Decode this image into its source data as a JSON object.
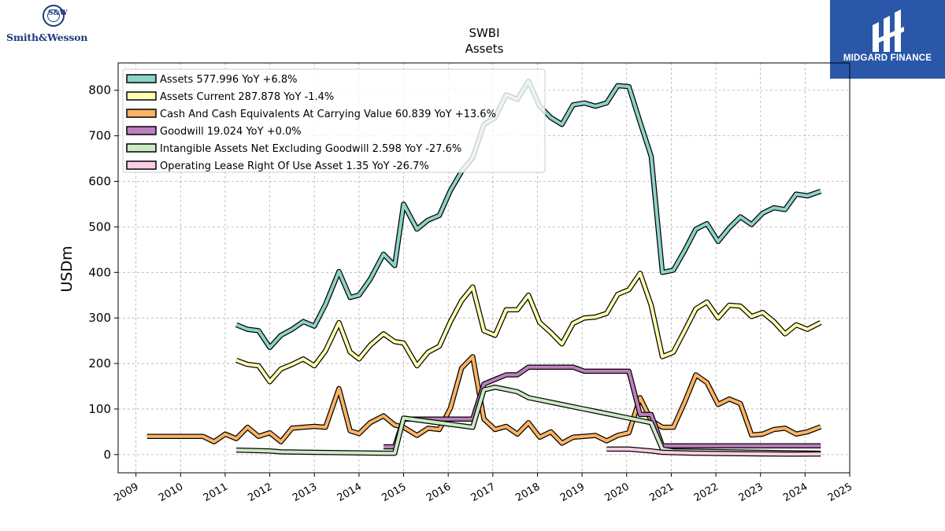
{
  "header": {
    "left_logo_text": "Smith&Wesson",
    "left_logo_mark": "S&W",
    "right_logo_text": "MIDGARD FINANCE"
  },
  "chart_data": {
    "type": "line",
    "title": "SWBI",
    "subtitle": "Assets",
    "xlabel": "",
    "ylabel": "USDm",
    "xlim": [
      2008.6,
      2025.0
    ],
    "ylim": [
      -40,
      860
    ],
    "x_ticks": [
      "2009",
      "2010",
      "2011",
      "2012",
      "2013",
      "2014",
      "2015",
      "2016",
      "2017",
      "2018",
      "2019",
      "2020",
      "2021",
      "2022",
      "2023",
      "2024",
      "2025"
    ],
    "y_ticks": [
      0,
      100,
      200,
      300,
      400,
      500,
      600,
      700,
      800
    ],
    "grid": true,
    "legend_position": "top-left",
    "series": [
      {
        "name": "Assets",
        "legend": "Assets  577.996 YoY +6.8%",
        "color": "#8dd3c7",
        "points": [
          [
            2011.25,
            285
          ],
          [
            2011.5,
            275
          ],
          [
            2011.75,
            272
          ],
          [
            2012.0,
            235
          ],
          [
            2012.25,
            262
          ],
          [
            2012.5,
            275
          ],
          [
            2012.75,
            292
          ],
          [
            2013.0,
            282
          ],
          [
            2013.25,
            330
          ],
          [
            2013.55,
            402
          ],
          [
            2013.8,
            345
          ],
          [
            2014.0,
            350
          ],
          [
            2014.25,
            385
          ],
          [
            2014.55,
            440
          ],
          [
            2014.8,
            415
          ],
          [
            2015.0,
            550
          ],
          [
            2015.3,
            495
          ],
          [
            2015.55,
            515
          ],
          [
            2015.8,
            525
          ],
          [
            2016.05,
            580
          ],
          [
            2016.3,
            622
          ],
          [
            2016.55,
            652
          ],
          [
            2016.8,
            725
          ],
          [
            2017.05,
            740
          ],
          [
            2017.3,
            790
          ],
          [
            2017.55,
            780
          ],
          [
            2017.8,
            820
          ],
          [
            2018.05,
            765
          ],
          [
            2018.3,
            740
          ],
          [
            2018.55,
            725
          ],
          [
            2018.8,
            768
          ],
          [
            2019.05,
            772
          ],
          [
            2019.3,
            765
          ],
          [
            2019.55,
            772
          ],
          [
            2019.8,
            810
          ],
          [
            2020.05,
            808
          ],
          [
            2020.3,
            730
          ],
          [
            2020.55,
            655
          ],
          [
            2020.8,
            400
          ],
          [
            2021.05,
            405
          ],
          [
            2021.3,
            448
          ],
          [
            2021.55,
            495
          ],
          [
            2021.8,
            507
          ],
          [
            2022.05,
            468
          ],
          [
            2022.3,
            498
          ],
          [
            2022.55,
            522
          ],
          [
            2022.8,
            505
          ],
          [
            2023.05,
            530
          ],
          [
            2023.3,
            542
          ],
          [
            2023.55,
            538
          ],
          [
            2023.8,
            572
          ],
          [
            2024.05,
            568
          ],
          [
            2024.35,
            578
          ]
        ]
      },
      {
        "name": "Assets Current",
        "legend": "Assets Current  287.878 YoY -1.4%",
        "color": "#ffffb3",
        "points": [
          [
            2011.25,
            207
          ],
          [
            2011.5,
            198
          ],
          [
            2011.75,
            195
          ],
          [
            2012.0,
            160
          ],
          [
            2012.25,
            188
          ],
          [
            2012.5,
            198
          ],
          [
            2012.75,
            210
          ],
          [
            2013.0,
            195
          ],
          [
            2013.25,
            228
          ],
          [
            2013.55,
            290
          ],
          [
            2013.8,
            225
          ],
          [
            2014.0,
            210
          ],
          [
            2014.25,
            240
          ],
          [
            2014.55,
            265
          ],
          [
            2014.8,
            248
          ],
          [
            2015.0,
            245
          ],
          [
            2015.3,
            195
          ],
          [
            2015.55,
            225
          ],
          [
            2015.8,
            238
          ],
          [
            2016.05,
            292
          ],
          [
            2016.3,
            338
          ],
          [
            2016.55,
            368
          ],
          [
            2016.8,
            272
          ],
          [
            2017.05,
            262
          ],
          [
            2017.3,
            318
          ],
          [
            2017.55,
            318
          ],
          [
            2017.8,
            350
          ],
          [
            2018.05,
            290
          ],
          [
            2018.3,
            268
          ],
          [
            2018.55,
            243
          ],
          [
            2018.8,
            288
          ],
          [
            2019.05,
            300
          ],
          [
            2019.3,
            302
          ],
          [
            2019.55,
            310
          ],
          [
            2019.8,
            352
          ],
          [
            2020.05,
            362
          ],
          [
            2020.3,
            398
          ],
          [
            2020.55,
            328
          ],
          [
            2020.8,
            215
          ],
          [
            2021.05,
            225
          ],
          [
            2021.3,
            272
          ],
          [
            2021.55,
            320
          ],
          [
            2021.8,
            335
          ],
          [
            2022.05,
            300
          ],
          [
            2022.3,
            328
          ],
          [
            2022.55,
            326
          ],
          [
            2022.8,
            303
          ],
          [
            2023.05,
            312
          ],
          [
            2023.3,
            292
          ],
          [
            2023.55,
            265
          ],
          [
            2023.8,
            285
          ],
          [
            2024.05,
            275
          ],
          [
            2024.35,
            290
          ]
        ]
      },
      {
        "name": "Cash And Cash Equivalents At Carrying Value",
        "legend": "Cash And Cash Equivalents At Carrying Value  60.839 YoY +13.6%",
        "color": "#fdb462",
        "points": [
          [
            2009.25,
            40
          ],
          [
            2009.5,
            40
          ],
          [
            2009.75,
            40
          ],
          [
            2010.0,
            40
          ],
          [
            2010.25,
            40
          ],
          [
            2010.5,
            40
          ],
          [
            2010.75,
            28
          ],
          [
            2011.0,
            45
          ],
          [
            2011.25,
            35
          ],
          [
            2011.5,
            60
          ],
          [
            2011.75,
            40
          ],
          [
            2012.0,
            48
          ],
          [
            2012.25,
            28
          ],
          [
            2012.5,
            58
          ],
          [
            2012.75,
            60
          ],
          [
            2013.0,
            62
          ],
          [
            2013.25,
            60
          ],
          [
            2013.55,
            145
          ],
          [
            2013.8,
            52
          ],
          [
            2014.0,
            46
          ],
          [
            2014.25,
            70
          ],
          [
            2014.55,
            85
          ],
          [
            2014.8,
            65
          ],
          [
            2015.0,
            60
          ],
          [
            2015.3,
            42
          ],
          [
            2015.55,
            58
          ],
          [
            2015.8,
            55
          ],
          [
            2016.05,
            102
          ],
          [
            2016.3,
            190
          ],
          [
            2016.55,
            215
          ],
          [
            2016.8,
            78
          ],
          [
            2017.05,
            55
          ],
          [
            2017.3,
            62
          ],
          [
            2017.55,
            45
          ],
          [
            2017.8,
            70
          ],
          [
            2018.05,
            38
          ],
          [
            2018.3,
            50
          ],
          [
            2018.55,
            25
          ],
          [
            2018.8,
            38
          ],
          [
            2019.05,
            40
          ],
          [
            2019.3,
            42
          ],
          [
            2019.55,
            30
          ],
          [
            2019.8,
            42
          ],
          [
            2020.05,
            48
          ],
          [
            2020.3,
            125
          ],
          [
            2020.55,
            75
          ],
          [
            2020.8,
            60
          ],
          [
            2021.05,
            60
          ],
          [
            2021.3,
            115
          ],
          [
            2021.55,
            175
          ],
          [
            2021.8,
            158
          ],
          [
            2022.05,
            110
          ],
          [
            2022.3,
            122
          ],
          [
            2022.55,
            112
          ],
          [
            2022.8,
            43
          ],
          [
            2023.05,
            45
          ],
          [
            2023.3,
            55
          ],
          [
            2023.55,
            58
          ],
          [
            2023.8,
            45
          ],
          [
            2024.05,
            50
          ],
          [
            2024.35,
            61
          ]
        ]
      },
      {
        "name": "Goodwill",
        "legend": "Goodwill  19.024 YoY +0.0%",
        "color": "#bc80bd",
        "points": [
          [
            2014.55,
            17
          ],
          [
            2014.8,
            17
          ],
          [
            2015.0,
            78
          ],
          [
            2016.55,
            78
          ],
          [
            2016.8,
            155
          ],
          [
            2017.05,
            165
          ],
          [
            2017.3,
            175
          ],
          [
            2017.55,
            175
          ],
          [
            2017.8,
            192
          ],
          [
            2018.05,
            192
          ],
          [
            2018.55,
            192
          ],
          [
            2018.8,
            192
          ],
          [
            2019.05,
            183
          ],
          [
            2019.55,
            183
          ],
          [
            2019.8,
            183
          ],
          [
            2020.05,
            183
          ],
          [
            2020.3,
            88
          ],
          [
            2020.55,
            88
          ],
          [
            2020.8,
            19
          ],
          [
            2024.35,
            19
          ]
        ]
      },
      {
        "name": "Intangible Assets Net Excluding Goodwill",
        "legend": "Intangible Assets Net Excluding Goodwill  2.598 YoY -27.6%",
        "color": "#ccebc5",
        "points": [
          [
            2011.25,
            10
          ],
          [
            2012.0,
            8
          ],
          [
            2012.25,
            6
          ],
          [
            2014.55,
            3
          ],
          [
            2014.8,
            3
          ],
          [
            2015.0,
            80
          ],
          [
            2016.55,
            60
          ],
          [
            2016.8,
            142
          ],
          [
            2017.05,
            148
          ],
          [
            2017.55,
            138
          ],
          [
            2017.8,
            125
          ],
          [
            2018.55,
            110
          ],
          [
            2019.05,
            100
          ],
          [
            2019.55,
            90
          ],
          [
            2020.05,
            80
          ],
          [
            2020.55,
            70
          ],
          [
            2020.8,
            12
          ],
          [
            2021.05,
            8
          ],
          [
            2024.35,
            3
          ]
        ]
      },
      {
        "name": "Operating Lease Right Of Use Asset",
        "legend": "Operating Lease Right Of Use Asset  1.35 YoY -26.7%",
        "color": "#fccde5",
        "points": [
          [
            2019.55,
            12
          ],
          [
            2020.05,
            12
          ],
          [
            2020.55,
            8
          ],
          [
            2020.8,
            5
          ],
          [
            2021.55,
            3
          ],
          [
            2022.55,
            2
          ],
          [
            2023.55,
            1
          ],
          [
            2024.35,
            1.35
          ]
        ]
      }
    ]
  }
}
